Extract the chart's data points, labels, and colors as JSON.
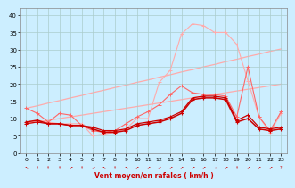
{
  "x": [
    0,
    1,
    2,
    3,
    4,
    5,
    6,
    7,
    8,
    9,
    10,
    11,
    12,
    13,
    14,
    15,
    16,
    17,
    18,
    19,
    20,
    21,
    22,
    23
  ],
  "line_dark1": [
    9.0,
    9.5,
    8.5,
    8.5,
    8.0,
    8.0,
    7.0,
    6.0,
    6.0,
    6.5,
    8.0,
    8.5,
    9.0,
    10.0,
    11.5,
    15.5,
    16.0,
    16.0,
    15.5,
    9.0,
    10.0,
    7.0,
    6.5,
    7.0
  ],
  "line_dark2": [
    8.5,
    9.0,
    8.5,
    8.5,
    8.0,
    8.0,
    7.5,
    6.5,
    6.5,
    7.0,
    8.5,
    9.0,
    9.5,
    10.5,
    12.0,
    16.0,
    16.5,
    16.5,
    16.0,
    9.5,
    11.0,
    7.5,
    7.0,
    7.5
  ],
  "line_med": [
    13.0,
    11.5,
    9.0,
    11.5,
    11.0,
    8.0,
    6.5,
    6.0,
    6.5,
    8.5,
    10.5,
    12.0,
    14.0,
    17.0,
    19.5,
    17.5,
    17.0,
    17.0,
    16.5,
    10.5,
    25.0,
    10.5,
    6.5,
    12.0
  ],
  "line_light": [
    8.5,
    9.5,
    9.0,
    8.5,
    8.5,
    8.5,
    5.0,
    5.5,
    6.0,
    7.0,
    10.0,
    10.0,
    20.5,
    24.0,
    34.5,
    37.5,
    37.0,
    35.0,
    35.0,
    31.5,
    21.0,
    10.5,
    6.0,
    11.5
  ],
  "trend_low": [
    8.5,
    9.0,
    9.5,
    10.0,
    10.5,
    11.0,
    11.5,
    12.0,
    12.5,
    13.0,
    13.5,
    14.0,
    14.5,
    15.0,
    15.5,
    16.0,
    16.5,
    17.0,
    17.5,
    18.0,
    18.5,
    19.0,
    19.5,
    20.0
  ],
  "trend_high": [
    13.0,
    13.7,
    14.5,
    15.2,
    16.0,
    16.7,
    17.5,
    18.2,
    19.0,
    19.7,
    20.5,
    21.2,
    22.0,
    22.7,
    23.5,
    24.2,
    25.0,
    25.7,
    26.5,
    27.2,
    28.0,
    28.7,
    29.5,
    30.2
  ],
  "bg_color": "#cceeff",
  "grid_color": "#aacccc",
  "color_dark": "#cc0000",
  "color_med": "#ff6666",
  "color_light": "#ffaaaa",
  "xlabel": "Vent moyen/en rafales ( km/h )",
  "ylim": [
    0,
    42
  ],
  "xlim": [
    -0.5,
    23.5
  ],
  "yticks": [
    0,
    5,
    10,
    15,
    20,
    25,
    30,
    35,
    40
  ],
  "xticks": [
    0,
    1,
    2,
    3,
    4,
    5,
    6,
    7,
    8,
    9,
    10,
    11,
    12,
    13,
    14,
    15,
    16,
    17,
    18,
    19,
    20,
    21,
    22,
    23
  ],
  "wind_dirs": [
    "↖",
    "↑",
    "↑",
    "↑",
    "↗",
    "↑",
    "↗",
    "↖",
    "↑",
    "↖",
    "↗",
    "↗",
    "↗",
    "↗",
    "↗",
    "↗",
    "↗",
    "→",
    "↗",
    "↑",
    "↗",
    "↗",
    "↗",
    "?"
  ]
}
